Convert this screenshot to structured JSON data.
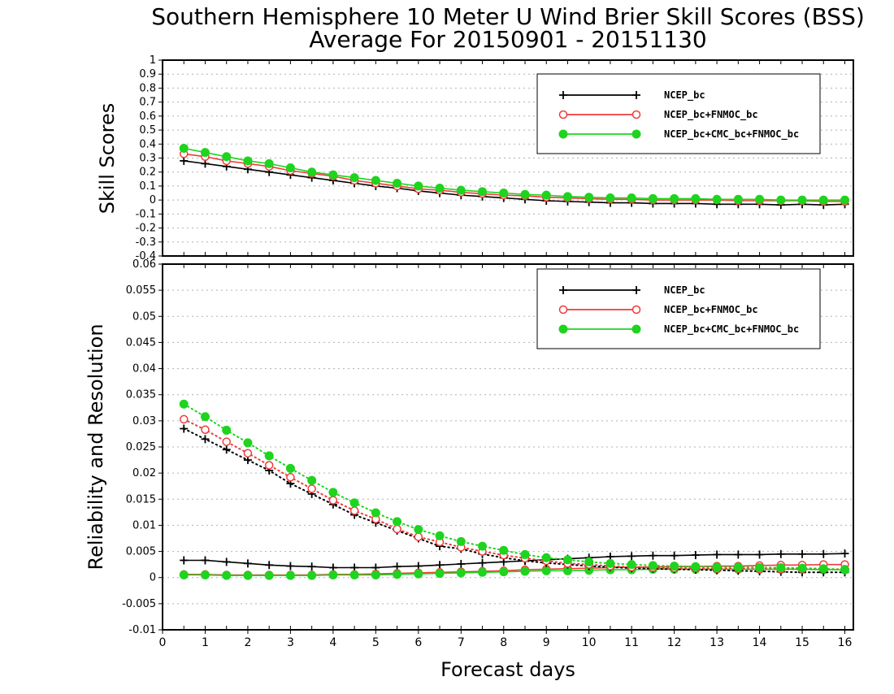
{
  "titles": {
    "line1": "Southern Hemisphere 10 Meter U Wind Brier Skill Scores (BSS)",
    "line2": "Average For 20150901 - 20151130"
  },
  "colors": {
    "NCEP_bc": "#000000",
    "NCEP_bc+FNMOC_bc": "#ef3b3b",
    "NCEP_bc+CMC_bc+FNMOC_bc": "#1ed41e",
    "grid": "#b0b0b0"
  },
  "chart_data": [
    {
      "type": "line",
      "ylabel": "Skill Scores",
      "xlabel": "",
      "xlim": [
        0,
        16.2
      ],
      "ylim": [
        -0.4,
        1
      ],
      "yticks": [
        -0.4,
        -0.3,
        -0.2,
        -0.1,
        0,
        0.1,
        0.2,
        0.3,
        0.4,
        0.5,
        0.6,
        0.7,
        0.8,
        0.9,
        1
      ],
      "ytick_labels": [
        "-0.4",
        "-0.3",
        "-0.2",
        "-0.1",
        "0",
        "0.1",
        "0.2",
        "0.3",
        "0.4",
        "0.5",
        "0.6",
        "0.7",
        "0.8",
        "0.9",
        "1"
      ],
      "grid": "horizontal dotted",
      "legend_position": "top-right",
      "x": [
        0.5,
        1,
        1.5,
        2,
        2.5,
        3,
        3.5,
        4,
        4.5,
        5,
        5.5,
        6,
        6.5,
        7,
        7.5,
        8,
        8.5,
        9,
        9.5,
        10,
        10.5,
        11,
        11.5,
        12,
        12.5,
        13,
        13.5,
        14,
        14.5,
        15,
        15.5,
        16
      ],
      "series": [
        {
          "name": "NCEP_bc",
          "marker": "plus",
          "line": "solid",
          "values": [
            0.28,
            0.26,
            0.24,
            0.22,
            0.2,
            0.18,
            0.16,
            0.14,
            0.12,
            0.1,
            0.085,
            0.065,
            0.05,
            0.035,
            0.025,
            0.015,
            0.005,
            -0.005,
            -0.01,
            -0.015,
            -0.02,
            -0.02,
            -0.025,
            -0.025,
            -0.025,
            -0.03,
            -0.03,
            -0.03,
            -0.035,
            -0.03,
            -0.035,
            -0.03
          ]
        },
        {
          "name": "NCEP_bc+FNMOC_bc",
          "marker": "open-circle",
          "line": "solid",
          "values": [
            0.33,
            0.31,
            0.28,
            0.26,
            0.24,
            0.21,
            0.19,
            0.17,
            0.14,
            0.12,
            0.1,
            0.08,
            0.07,
            0.055,
            0.045,
            0.035,
            0.03,
            0.02,
            0.015,
            0.01,
            0.005,
            0.005,
            0.0,
            0.0,
            0.0,
            0.0,
            -0.005,
            -0.005,
            -0.005,
            -0.005,
            -0.01,
            -0.01
          ]
        },
        {
          "name": "NCEP_bc+CMC_bc+FNMOC_bc",
          "marker": "filled-circle",
          "line": "solid",
          "values": [
            0.37,
            0.34,
            0.31,
            0.28,
            0.26,
            0.23,
            0.2,
            0.18,
            0.16,
            0.14,
            0.12,
            0.1,
            0.085,
            0.07,
            0.06,
            0.05,
            0.04,
            0.035,
            0.025,
            0.02,
            0.015,
            0.015,
            0.01,
            0.01,
            0.01,
            0.005,
            0.005,
            0.005,
            0.0,
            0.0,
            0.0,
            0.0
          ]
        }
      ]
    },
    {
      "type": "line",
      "ylabel": "Reliability and Resolution",
      "xlabel": "Forecast days",
      "xlim": [
        0,
        16.2
      ],
      "ylim": [
        -0.01,
        0.06
      ],
      "yticks": [
        -0.01,
        -0.005,
        0,
        0.005,
        0.01,
        0.015,
        0.02,
        0.025,
        0.03,
        0.035,
        0.04,
        0.045,
        0.05,
        0.055,
        0.06
      ],
      "ytick_labels": [
        "-0.01",
        "-0.005",
        "0",
        "0.005",
        "0.01",
        "0.015",
        "0.02",
        "0.025",
        "0.03",
        "0.035",
        "0.04",
        "0.045",
        "0.05",
        "0.055",
        "0.06"
      ],
      "xticks": [
        0,
        1,
        2,
        3,
        4,
        5,
        6,
        7,
        8,
        9,
        10,
        11,
        12,
        13,
        14,
        15,
        16
      ],
      "xtick_labels": [
        "0",
        "1",
        "2",
        "3",
        "4",
        "5",
        "6",
        "7",
        "8",
        "9",
        "10",
        "11",
        "12",
        "13",
        "14",
        "15",
        "16"
      ],
      "grid": "horizontal dotted",
      "legend_position": "top-right",
      "x": [
        0.5,
        1,
        1.5,
        2,
        2.5,
        3,
        3.5,
        4,
        4.5,
        5,
        5.5,
        6,
        6.5,
        7,
        7.5,
        8,
        8.5,
        9,
        9.5,
        10,
        10.5,
        11,
        11.5,
        12,
        12.5,
        13,
        13.5,
        14,
        14.5,
        15,
        15.5,
        16
      ],
      "series": [
        {
          "name": "NCEP_bc",
          "marker": "plus",
          "group": "reliability",
          "line": "solid",
          "values": [
            0.0033,
            0.0033,
            0.003,
            0.0027,
            0.0024,
            0.0022,
            0.0021,
            0.0019,
            0.0019,
            0.0019,
            0.0021,
            0.0022,
            0.0024,
            0.0026,
            0.0028,
            0.003,
            0.0032,
            0.0034,
            0.0036,
            0.0038,
            0.004,
            0.0041,
            0.0042,
            0.0042,
            0.0043,
            0.0044,
            0.0044,
            0.0044,
            0.0045,
            0.0045,
            0.0045,
            0.0046
          ]
        },
        {
          "name": "NCEP_bc+FNMOC_bc",
          "marker": "open-circle",
          "group": "reliability",
          "line": "solid",
          "values": [
            0.0006,
            0.0006,
            0.0005,
            0.0005,
            0.0005,
            0.0005,
            0.0005,
            0.0006,
            0.0006,
            0.0007,
            0.0008,
            0.0009,
            0.001,
            0.0011,
            0.0012,
            0.0013,
            0.0015,
            0.0016,
            0.0017,
            0.0018,
            0.0019,
            0.002,
            0.002,
            0.0021,
            0.0021,
            0.0022,
            0.0022,
            0.0023,
            0.0024,
            0.0024,
            0.0025,
            0.0025
          ]
        },
        {
          "name": "NCEP_bc+CMC_bc+FNMOC_bc",
          "marker": "filled-circle",
          "group": "reliability",
          "line": "solid",
          "values": [
            0.0005,
            0.0005,
            0.0004,
            0.0004,
            0.0004,
            0.0004,
            0.0004,
            0.0005,
            0.0005,
            0.0005,
            0.0006,
            0.0007,
            0.0008,
            0.0009,
            0.001,
            0.0011,
            0.0012,
            0.0013,
            0.0013,
            0.0014,
            0.0015,
            0.0015,
            0.0016,
            0.0016,
            0.0016,
            0.0016,
            0.0016,
            0.0016,
            0.0016,
            0.0016,
            0.0015,
            0.0015
          ]
        },
        {
          "name": "NCEP_bc",
          "marker": "plus",
          "group": "resolution",
          "line": "dotted",
          "values": [
            0.0285,
            0.0265,
            0.0245,
            0.0225,
            0.0205,
            0.018,
            0.016,
            0.014,
            0.012,
            0.0105,
            0.009,
            0.0075,
            0.006,
            0.0055,
            0.0045,
            0.0038,
            0.0032,
            0.0028,
            0.0025,
            0.0022,
            0.002,
            0.0018,
            0.0017,
            0.0016,
            0.0015,
            0.0014,
            0.0013,
            0.0012,
            0.0011,
            0.001,
            0.001,
            0.001
          ]
        },
        {
          "name": "NCEP_bc+FNMOC_bc",
          "marker": "open-circle",
          "group": "resolution",
          "line": "dotted",
          "values": [
            0.0303,
            0.0283,
            0.026,
            0.0238,
            0.0215,
            0.0192,
            0.017,
            0.0148,
            0.0128,
            0.0112,
            0.0093,
            0.0078,
            0.0068,
            0.0058,
            0.005,
            0.0043,
            0.0037,
            0.0032,
            0.0027,
            0.0025,
            0.0022,
            0.002,
            0.0019,
            0.0018,
            0.0018,
            0.0017,
            0.0017,
            0.0016,
            0.0016,
            0.0016,
            0.0016,
            0.0016
          ]
        },
        {
          "name": "NCEP_bc+CMC_bc+FNMOC_bc",
          "marker": "filled-circle",
          "group": "resolution",
          "line": "dotted",
          "values": [
            0.0332,
            0.0308,
            0.0282,
            0.0258,
            0.0233,
            0.0209,
            0.0186,
            0.0163,
            0.0143,
            0.0124,
            0.0107,
            0.0092,
            0.008,
            0.0069,
            0.006,
            0.0052,
            0.0044,
            0.0038,
            0.0034,
            0.003,
            0.0027,
            0.0025,
            0.0023,
            0.0022,
            0.0021,
            0.002,
            0.002,
            0.0019,
            0.0019,
            0.0018,
            0.0017,
            0.0015
          ]
        }
      ]
    }
  ]
}
